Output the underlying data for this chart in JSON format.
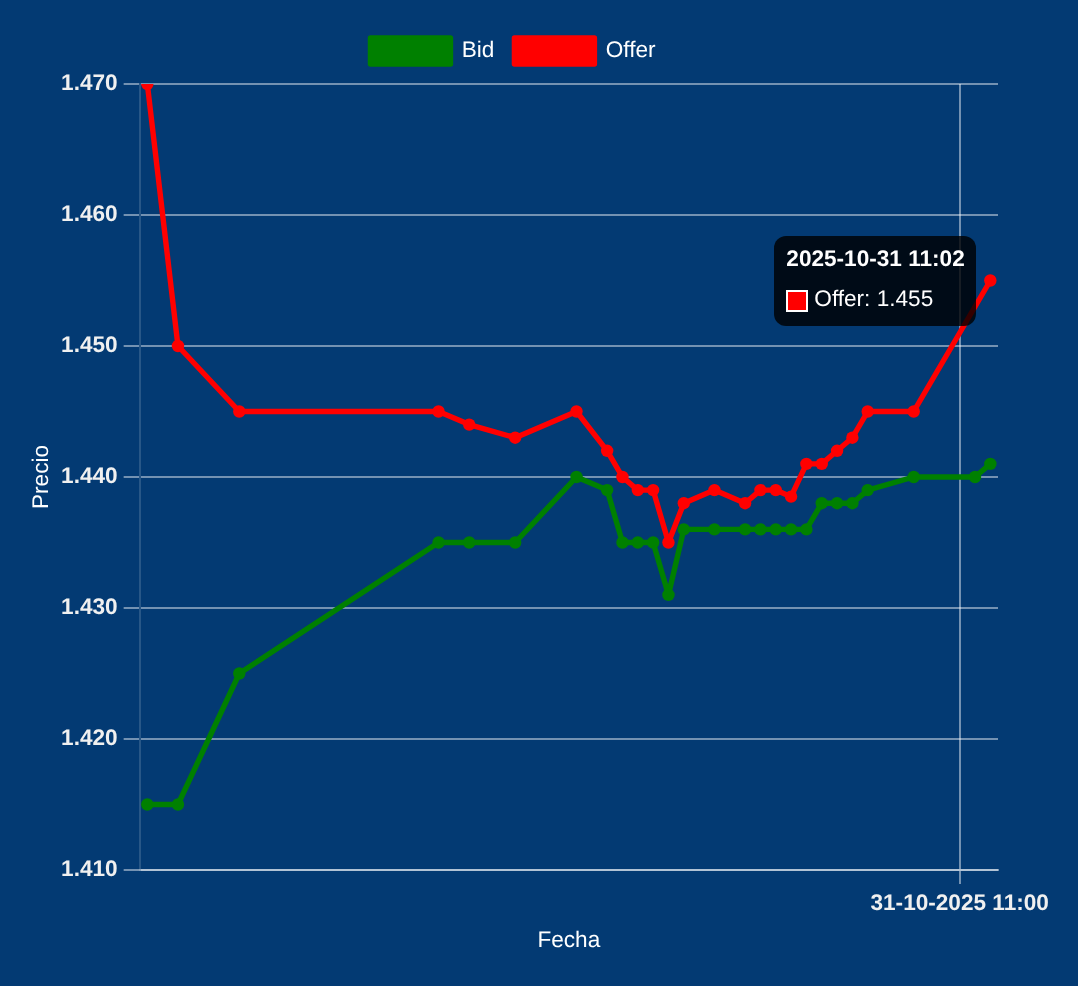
{
  "chart_data": {
    "type": "line",
    "xlabel": "Fecha",
    "ylabel": "Precio",
    "categories": [
      null,
      null,
      null,
      null,
      null,
      null,
      null,
      null,
      null,
      null,
      null,
      null,
      null,
      null,
      null,
      null,
      null,
      null,
      null,
      null,
      null,
      null,
      null,
      null,
      null,
      null,
      null,
      null,
      null,
      null,
      null,
      null,
      null,
      null,
      null,
      null,
      null,
      null,
      null,
      null,
      null,
      null,
      null,
      null,
      null,
      null,
      null,
      null,
      null,
      null,
      null,
      null,
      null,
      "31-10-2025 11:00",
      null,
      null
    ],
    "series": [
      {
        "name": "Bid",
        "color": "#008000",
        "values": [
          1.415,
          null,
          1.415,
          null,
          null,
          null,
          1.425,
          null,
          null,
          null,
          null,
          null,
          null,
          null,
          null,
          null,
          null,
          null,
          null,
          1.435,
          null,
          1.435,
          null,
          null,
          1.435,
          null,
          null,
          null,
          1.44,
          null,
          1.439,
          1.435,
          1.435,
          1.435,
          1.431,
          1.436,
          null,
          1.436,
          null,
          1.436,
          1.436,
          1.436,
          1.436,
          1.436,
          1.438,
          1.438,
          1.438,
          1.439,
          null,
          null,
          1.44,
          null,
          null,
          null,
          1.44,
          1.441
        ]
      },
      {
        "name": "Offer",
        "color": "#ff0000",
        "values": [
          1.47,
          null,
          1.45,
          null,
          null,
          null,
          1.445,
          null,
          null,
          null,
          null,
          null,
          null,
          null,
          null,
          null,
          null,
          null,
          null,
          1.445,
          null,
          1.444,
          null,
          null,
          1.443,
          null,
          null,
          null,
          1.445,
          null,
          1.442,
          1.44,
          1.439,
          1.439,
          1.435,
          1.438,
          null,
          1.439,
          null,
          1.438,
          1.439,
          1.439,
          1.4385,
          1.441,
          1.441,
          1.442,
          1.443,
          1.445,
          null,
          null,
          1.445,
          null,
          null,
          null,
          null,
          1.455
        ]
      }
    ],
    "ylim": [
      1.41,
      1.47
    ],
    "yticks": [
      {
        "value": 1.41,
        "label": "1.410"
      },
      {
        "value": 1.42,
        "label": "1.420"
      },
      {
        "value": 1.43,
        "label": "1.430"
      },
      {
        "value": 1.44,
        "label": "1.440"
      },
      {
        "value": 1.45,
        "label": "1.450"
      },
      {
        "value": 1.46,
        "label": "1.460"
      },
      {
        "value": 1.47,
        "label": "1.470"
      }
    ],
    "grid": true,
    "legend": "top",
    "marker": "circle",
    "line_style": "solid",
    "annotations": [
      "2025-10-31 11:02",
      "Offer: 1.455"
    ]
  }
}
